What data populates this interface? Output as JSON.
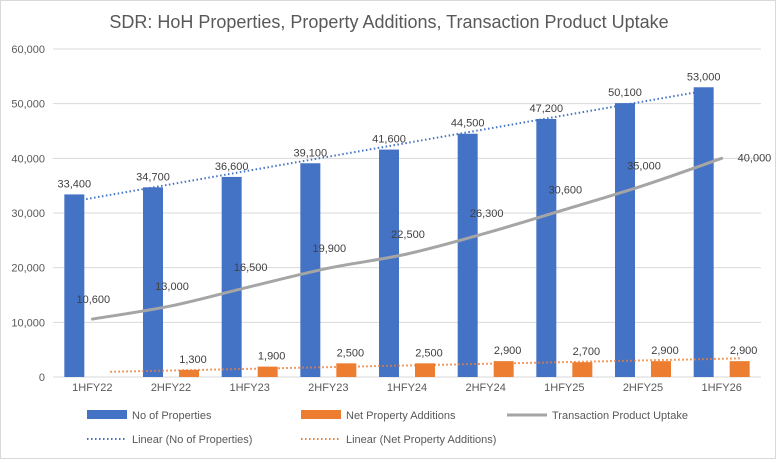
{
  "chart_data": {
    "type": "bar",
    "title": "SDR: HoH Properties, Property Additions, Transaction Product Uptake",
    "xlabel": "",
    "ylabel": "",
    "categories": [
      "1HFY22",
      "2HFY22",
      "1HFY23",
      "2HFY23",
      "1HFY24",
      "2HFY24",
      "1HFY25",
      "2HFY25",
      "1HFY26"
    ],
    "ylim": [
      0,
      60000
    ],
    "yticks": [
      "0",
      "10,000",
      "20,000",
      "30,000",
      "40,000",
      "50,000",
      "60,000"
    ],
    "ytick_values": [
      0,
      10000,
      20000,
      30000,
      40000,
      50000,
      60000
    ],
    "grid": true,
    "legend_position": "bottom",
    "series": [
      {
        "name": "No of Properties",
        "kind": "bar",
        "color": "#4472C4",
        "values": [
          33400,
          34700,
          36600,
          39100,
          41600,
          44500,
          47200,
          50100,
          53000
        ],
        "labels": [
          "33,400",
          "34,700",
          "36,600",
          "39,100",
          "41,600",
          "44,500",
          "47,200",
          "50,100",
          "53,000"
        ]
      },
      {
        "name": "Net Property Additions",
        "kind": "bar",
        "color": "#ED7D31",
        "values": [
          0,
          1300,
          1900,
          2500,
          2500,
          2900,
          2700,
          2900,
          2900
        ],
        "labels": [
          "",
          "1,300",
          "1,900",
          "2,500",
          "2,500",
          "2,900",
          "2,700",
          "2,900",
          "2,900"
        ]
      },
      {
        "name": "Transaction Product Uptake",
        "kind": "line",
        "color": "#A5A5A5",
        "values": [
          10600,
          13000,
          16500,
          19900,
          22500,
          26300,
          30600,
          35000,
          40000
        ],
        "labels": [
          "10,600",
          "13,000",
          "16,500",
          "19,900",
          "22,500",
          "26,300",
          "30,600",
          "35,000",
          "40,000"
        ]
      },
      {
        "name": "Linear (No of Properties)",
        "kind": "trendline",
        "color": "#4472C4",
        "of": "No of Properties"
      },
      {
        "name": "Linear (Net Property Additions)",
        "kind": "trendline",
        "color": "#ED7D31",
        "of": "Net Property Additions"
      }
    ]
  }
}
